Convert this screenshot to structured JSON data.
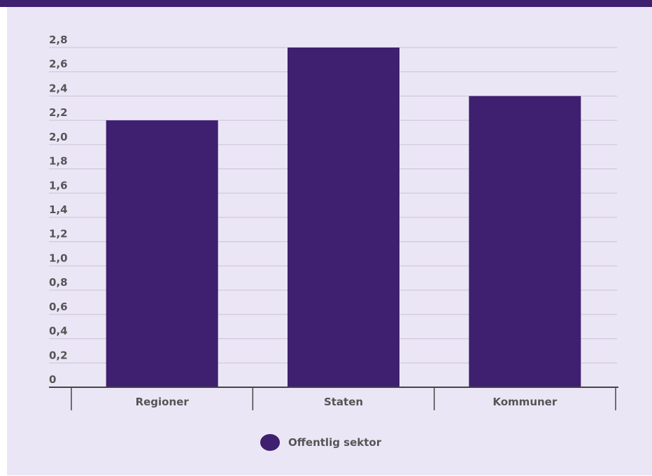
{
  "header": {
    "title": "",
    "bar_color": "#3f1f6f"
  },
  "panel": {
    "background": "#ebe6f5"
  },
  "chart_data": {
    "type": "bar",
    "categories": [
      "Regioner",
      "Staten",
      "Kommuner"
    ],
    "series": [
      {
        "name": "Offentlig sektor",
        "values": [
          2.2,
          2.8,
          2.4
        ],
        "color": "#3f1f6f"
      }
    ],
    "y_ticks": [
      "0",
      "0,2",
      "0,4",
      "0,6",
      "0,8",
      "1,0",
      "1,2",
      "1,4",
      "1,6",
      "1,8",
      "2,0",
      "2,2",
      "2,4",
      "2,6",
      "2,8"
    ],
    "ylim": [
      0,
      2.8
    ],
    "grid": true,
    "legend_position": "bottom",
    "title": "",
    "xlabel": "",
    "ylabel": ""
  }
}
